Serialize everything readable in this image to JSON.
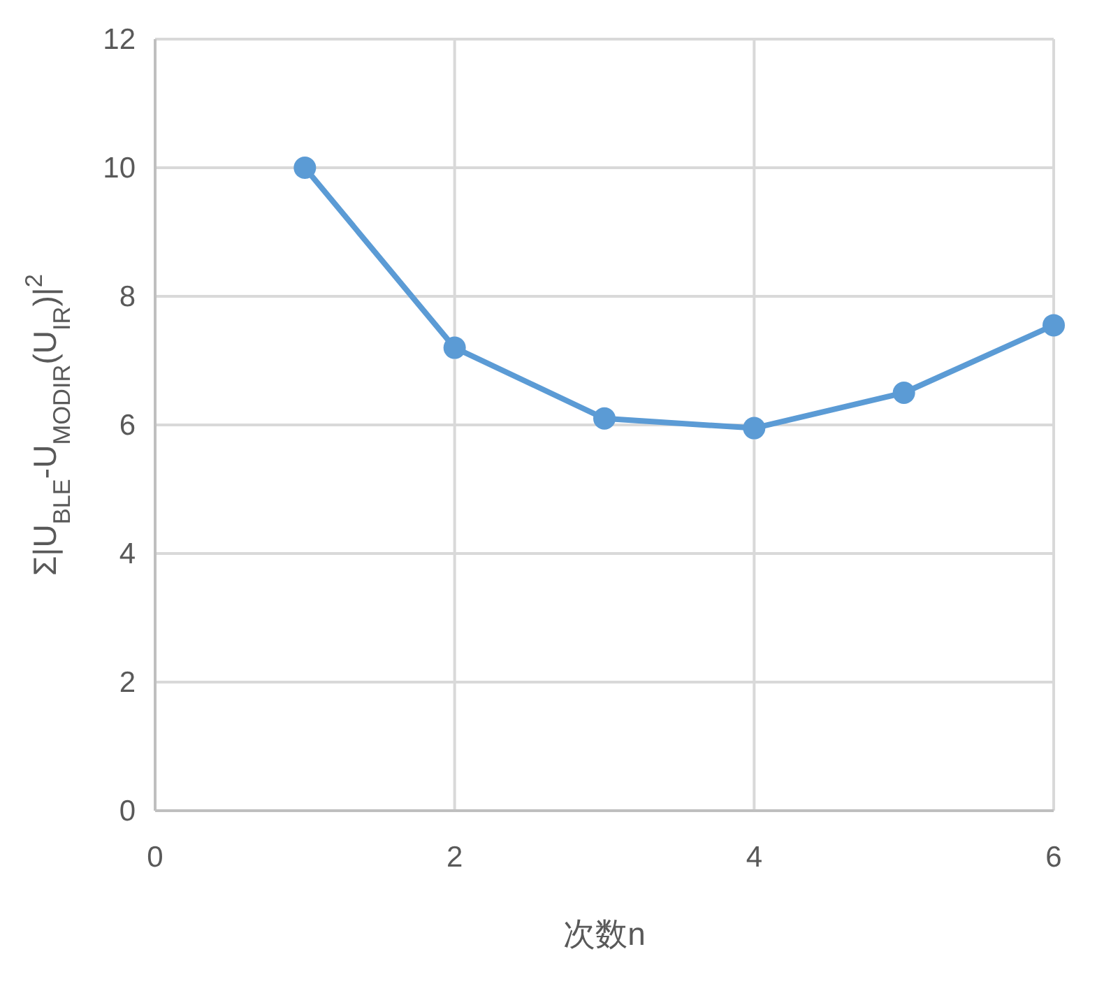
{
  "chart_data": {
    "type": "line",
    "xlabel": "次数n",
    "ylabel": "Σ|U$_{BLE}$-U$_{MODIR}$(U$_{IR}$)|$^{2}$",
    "x": [
      1,
      2,
      3,
      4,
      5,
      6
    ],
    "series": [
      {
        "color": "#5b9bd5",
        "values": [
          10.0,
          7.2,
          6.1,
          5.95,
          6.5,
          7.55
        ]
      }
    ],
    "xlim": [
      0,
      6
    ],
    "ylim": [
      0,
      12
    ],
    "xticks": [
      0,
      2,
      4,
      6
    ],
    "yticks": [
      0,
      2,
      4,
      6,
      8,
      10,
      12
    ],
    "grid": true,
    "marker": "circle",
    "line_style": "solid"
  }
}
